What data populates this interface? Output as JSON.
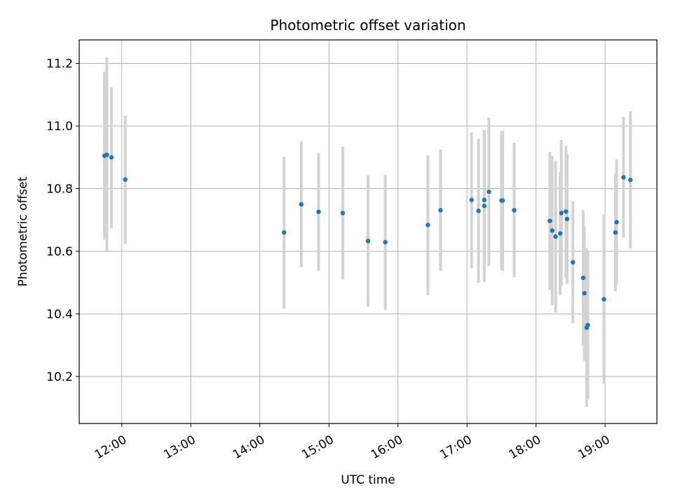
{
  "chart_data": {
    "type": "scatter",
    "title": "Photometric offset variation",
    "xlabel": "UTC time",
    "ylabel": "Photometric offset",
    "xlim": [
      "11:23",
      "19:45"
    ],
    "ylim": [
      10.05,
      11.275
    ],
    "grid": true,
    "x_ticks": [
      "12:00",
      "13:00",
      "14:00",
      "15:00",
      "16:00",
      "17:00",
      "18:00",
      "19:00"
    ],
    "y_ticks": [
      "10.2",
      "10.4",
      "10.6",
      "10.8",
      "11.0",
      "11.2"
    ],
    "y_tick_values": [
      10.2,
      10.4,
      10.6,
      10.8,
      11.0,
      11.2
    ],
    "colors": {
      "points": "#1f77b4",
      "error_bars": "#d3d3d3",
      "grid": "#b0b0b0"
    },
    "series": [
      {
        "points": [
          {
            "x": "11:45",
            "y": 10.905,
            "err_low": 10.637,
            "err_high": 11.173
          },
          {
            "x": "11:47",
            "y": 10.908,
            "err_low": 10.601,
            "err_high": 11.219
          },
          {
            "x": "11:51",
            "y": 10.9,
            "err_low": 10.673,
            "err_high": 11.123
          },
          {
            "x": "12:03",
            "y": 10.829,
            "err_low": 10.624,
            "err_high": 11.033
          },
          {
            "x": "14:21",
            "y": 10.66,
            "err_low": 10.417,
            "err_high": 10.902
          },
          {
            "x": "14:36",
            "y": 10.75,
            "err_low": 10.549,
            "err_high": 10.951
          },
          {
            "x": "14:51",
            "y": 10.726,
            "err_low": 10.538,
            "err_high": 10.913
          },
          {
            "x": "15:12",
            "y": 10.722,
            "err_low": 10.51,
            "err_high": 10.934
          },
          {
            "x": "15:34",
            "y": 10.633,
            "err_low": 10.423,
            "err_high": 10.842
          },
          {
            "x": "15:49",
            "y": 10.629,
            "err_low": 10.413,
            "err_high": 10.844
          },
          {
            "x": "16:26",
            "y": 10.684,
            "err_low": 10.46,
            "err_high": 10.906
          },
          {
            "x": "16:37",
            "y": 10.731,
            "err_low": 10.537,
            "err_high": 10.925
          },
          {
            "x": "17:04",
            "y": 10.764,
            "err_low": 10.546,
            "err_high": 10.98
          },
          {
            "x": "17:10",
            "y": 10.729,
            "err_low": 10.499,
            "err_high": 10.96
          },
          {
            "x": "17:15",
            "y": 10.764,
            "err_low": 10.544,
            "err_high": 10.987
          },
          {
            "x": "17:15",
            "y": 10.745,
            "err_low": 10.502,
            "err_high": 10.987
          },
          {
            "x": "17:19",
            "y": 10.79,
            "err_low": 10.553,
            "err_high": 11.027
          },
          {
            "x": "17:30",
            "y": 10.762,
            "err_low": 10.54,
            "err_high": 10.984
          },
          {
            "x": "17:31",
            "y": 10.762,
            "err_low": 10.537,
            "err_high": 10.985
          },
          {
            "x": "17:41",
            "y": 10.731,
            "err_low": 10.516,
            "err_high": 10.946
          },
          {
            "x": "18:12",
            "y": 10.697,
            "err_low": 10.477,
            "err_high": 10.917
          },
          {
            "x": "18:14",
            "y": 10.666,
            "err_low": 10.429,
            "err_high": 10.904
          },
          {
            "x": "18:17",
            "y": 10.647,
            "err_low": 10.405,
            "err_high": 10.889
          },
          {
            "x": "18:21",
            "y": 10.657,
            "err_low": 10.46,
            "err_high": 10.854
          },
          {
            "x": "18:22",
            "y": 10.722,
            "err_low": 10.489,
            "err_high": 10.955
          },
          {
            "x": "18:26",
            "y": 10.727,
            "err_low": 10.516,
            "err_high": 10.937
          },
          {
            "x": "18:27",
            "y": 10.703,
            "err_low": 10.496,
            "err_high": 10.91
          },
          {
            "x": "18:32",
            "y": 10.565,
            "err_low": 10.37,
            "err_high": 10.76
          },
          {
            "x": "18:41",
            "y": 10.515,
            "err_low": 10.298,
            "err_high": 10.731
          },
          {
            "x": "18:42",
            "y": 10.466,
            "err_low": 10.251,
            "err_high": 10.68
          },
          {
            "x": "18:44",
            "y": 10.356,
            "err_low": 10.103,
            "err_high": 10.609
          },
          {
            "x": "18:45",
            "y": 10.364,
            "err_low": 10.128,
            "err_high": 10.6
          },
          {
            "x": "18:59",
            "y": 10.447,
            "err_low": 10.177,
            "err_high": 10.717
          },
          {
            "x": "19:09",
            "y": 10.66,
            "err_low": 10.472,
            "err_high": 10.848
          },
          {
            "x": "19:10",
            "y": 10.693,
            "err_low": 10.493,
            "err_high": 10.893
          },
          {
            "x": "19:16",
            "y": 10.836,
            "err_low": 10.643,
            "err_high": 11.029
          },
          {
            "x": "19:22",
            "y": 10.828,
            "err_low": 10.609,
            "err_high": 11.047
          }
        ]
      }
    ]
  }
}
